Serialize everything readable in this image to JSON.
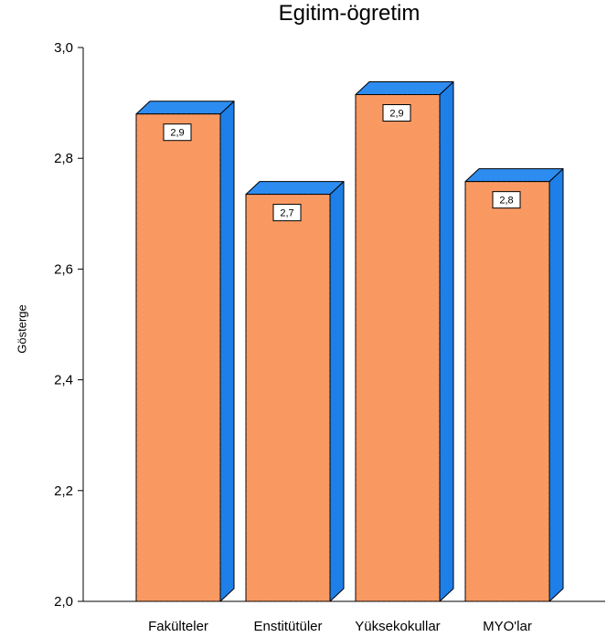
{
  "chart_data": {
    "type": "bar",
    "title": "Egitim-ögretim",
    "xlabel": "",
    "ylabel": "Gösterge",
    "categories": [
      "Fakülteler",
      "Enstitütüler",
      "Yüksekokullar",
      "MYO'lar"
    ],
    "values": [
      2.88,
      2.735,
      2.915,
      2.758
    ],
    "data_labels": [
      "2,9",
      "2,7",
      "2,9",
      "2,8"
    ],
    "ylim": [
      2.0,
      3.0
    ],
    "yticks": [
      2.0,
      2.2,
      2.4,
      2.6,
      2.8,
      3.0
    ],
    "ytick_labels": [
      "2,0",
      "2,2",
      "2,4",
      "2,6",
      "2,8",
      "3,0"
    ],
    "bar_front_color": "#FA9A63",
    "bar_side_color": "#1E7FE8",
    "bar_top_color": "#2D8CF0",
    "grid": false,
    "style": "3d-bar"
  }
}
